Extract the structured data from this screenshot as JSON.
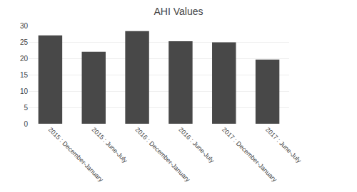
{
  "chart_data": {
    "type": "bar",
    "title": "AHI Values",
    "categories": [
      "2015 : December-January",
      "2015 : June-July",
      "2016 : December-January",
      "2016 : June-July",
      "2017 : December-January",
      "2017 : June-July"
    ],
    "values": [
      27,
      22,
      28.3,
      25.2,
      24.9,
      19.6
    ],
    "color": "#484848",
    "ylim": [
      0,
      30
    ],
    "yticks": [
      0,
      5,
      10,
      15,
      20,
      25,
      30
    ],
    "grid": true
  }
}
